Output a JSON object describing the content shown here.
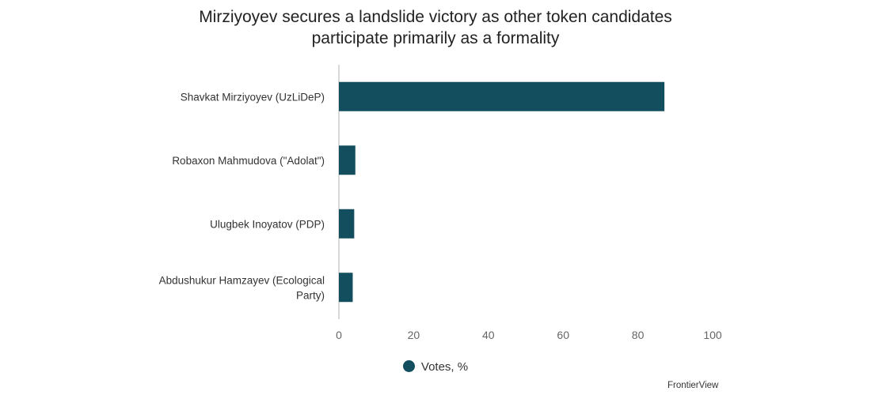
{
  "colors": {
    "bar": "#134e5e",
    "axis": "#cccccc"
  },
  "chart_data": {
    "type": "bar",
    "orientation": "horizontal",
    "title_lines": [
      "Mirziyoyev secures a landslide victory as other token candidates",
      "participate primarily as a formality"
    ],
    "categories": [
      [
        "Shavkat Mirziyoyev (UzLiDeP)"
      ],
      [
        "Robaxon Mahmudova (\"Adolat\")"
      ],
      [
        "Ulugbek Inoyatov (PDP)"
      ],
      [
        "Abdushukur Hamzayev (Ecological",
        "Party)"
      ]
    ],
    "series": [
      {
        "name": "Votes, %",
        "values": [
          87.1,
          4.4,
          4.1,
          3.7
        ]
      }
    ],
    "xlim": [
      0,
      100
    ],
    "xticks": [
      "0",
      "20",
      "40",
      "60",
      "80",
      "100"
    ],
    "xticks_values": [
      0,
      20,
      40,
      60,
      80,
      100
    ],
    "grid": false,
    "legend_position": "bottom"
  },
  "legend": {
    "label": "Votes, %"
  },
  "source": "FrontierView"
}
